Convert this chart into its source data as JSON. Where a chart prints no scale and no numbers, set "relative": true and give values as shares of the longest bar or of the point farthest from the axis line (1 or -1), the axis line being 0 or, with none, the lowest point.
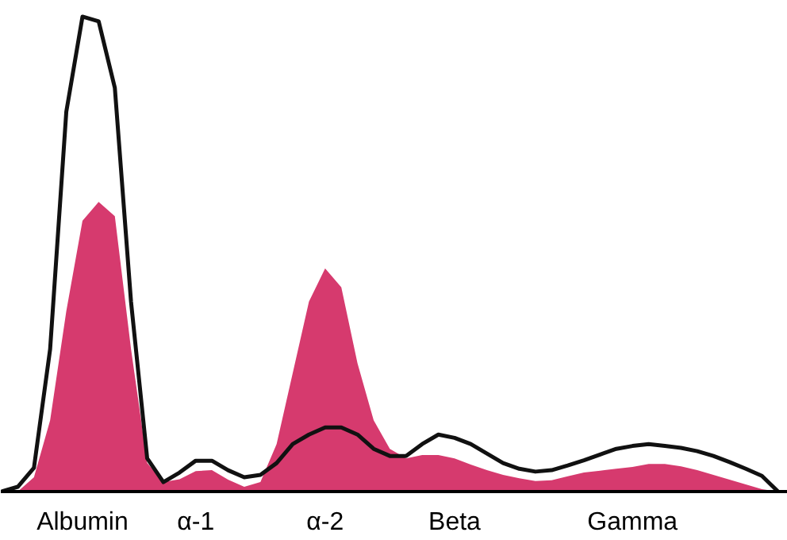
{
  "chart_data": {
    "type": "area",
    "relative": true,
    "grid": false,
    "tick_labels": "x",
    "categories": [
      null,
      null,
      null,
      null,
      null,
      "Albumin",
      null,
      null,
      null,
      null,
      null,
      null,
      "α-1",
      null,
      null,
      null,
      null,
      null,
      null,
      null,
      "α-2",
      null,
      null,
      null,
      null,
      null,
      null,
      null,
      "Beta",
      null,
      null,
      null,
      null,
      null,
      null,
      null,
      null,
      null,
      null,
      "Gamma",
      null,
      null,
      null,
      null,
      null,
      null,
      null,
      null,
      null
    ],
    "series": [
      {
        "color": "#d63a6e",
        "values": [
          0,
          0,
          0.03,
          0.15,
          0.38,
          0.57,
          0.61,
          0.58,
          0.3,
          0.06,
          0.02,
          0.026,
          0.043,
          0.045,
          0.025,
          0.01,
          0.02,
          0.1,
          0.25,
          0.4,
          0.47,
          0.43,
          0.27,
          0.15,
          0.09,
          0.07,
          0.077,
          0.077,
          0.07,
          0.057,
          0.045,
          0.035,
          0.028,
          0.022,
          0.024,
          0.032,
          0.04,
          0.044,
          0.048,
          0.052,
          0.058,
          0.058,
          0.053,
          0.045,
          0.035,
          0.025,
          0.015,
          0.005,
          0
        ]
      },
      {
        "type": "line",
        "color": "#111111",
        "line_style": "solid",
        "values": [
          0,
          0.01,
          0.05,
          0.3,
          0.8,
          1,
          0.99,
          0.85,
          0.4,
          0.07,
          0.02,
          0.04,
          0.065,
          0.065,
          0.045,
          0.03,
          0.035,
          0.06,
          0.1,
          0.12,
          0.135,
          0.135,
          0.12,
          0.09,
          0.075,
          0.075,
          0.1,
          0.12,
          0.113,
          0.1,
          0.08,
          0.06,
          0.048,
          0.042,
          0.045,
          0.055,
          0.066,
          0.078,
          0.09,
          0.096,
          0.1,
          0.096,
          0.092,
          0.085,
          0.075,
          0.062,
          0.048,
          0.033,
          0
        ]
      }
    ]
  }
}
